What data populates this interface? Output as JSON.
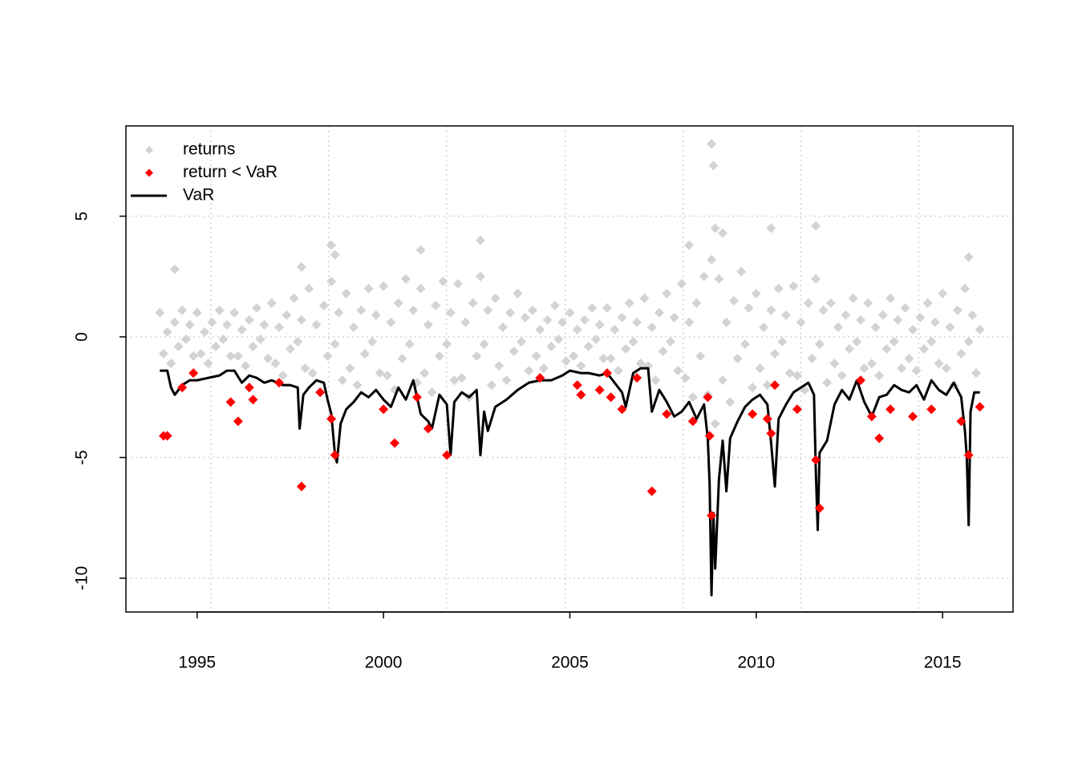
{
  "chart_data": {
    "type": "scatter",
    "xlim": [
      1993.09,
      2016.89
    ],
    "ylim": [
      -11.4,
      8.74
    ],
    "xticks": [
      1995,
      2000,
      2005,
      2010,
      2015
    ],
    "yticks": [
      -10,
      -5,
      0,
      5
    ],
    "xgrid": [
      1995.37,
      1998.53,
      2001.69,
      2004.88,
      2008.04,
      2011.2,
      2014.36
    ],
    "grid": true,
    "legend": "topleft",
    "series": [
      {
        "name": "returns",
        "color": "#d3d3d3",
        "marker": "diamond",
        "x": [
          1994.0,
          1994.1,
          1994.2,
          1994.3,
          1994.4,
          1994.5,
          1994.6,
          1994.7,
          1994.8,
          1994.9,
          1995.0,
          1995.1,
          1995.2,
          1995.3,
          1995.4,
          1995.5,
          1995.6,
          1995.7,
          1995.8,
          1995.9,
          1996.0,
          1996.1,
          1996.2,
          1996.3,
          1996.4,
          1996.5,
          1996.6,
          1996.7,
          1996.8,
          1996.9,
          1997.0,
          1997.1,
          1997.2,
          1997.3,
          1997.4,
          1997.5,
          1997.6,
          1997.7,
          1997.8,
          1997.9,
          1998.0,
          1998.1,
          1998.2,
          1998.3,
          1998.4,
          1998.5,
          1998.6,
          1998.7,
          1998.8,
          1998.9,
          1999.0,
          1999.1,
          1999.2,
          1999.3,
          1999.4,
          1999.5,
          1999.6,
          1999.7,
          1999.8,
          1999.9,
          2000.0,
          2000.1,
          2000.2,
          2000.3,
          2000.4,
          2000.5,
          2000.6,
          2000.7,
          2000.8,
          2000.9,
          2001.0,
          2001.1,
          2001.2,
          2001.3,
          2001.4,
          2001.5,
          2001.6,
          2001.7,
          2001.8,
          2001.9,
          2002.0,
          2002.1,
          2002.2,
          2002.3,
          2002.4,
          2002.5,
          2002.6,
          2002.7,
          2002.8,
          2002.9,
          2003.0,
          2003.1,
          2003.2,
          2003.3,
          2003.4,
          2003.5,
          2003.6,
          2003.7,
          2003.8,
          2003.9,
          2004.0,
          2004.1,
          2004.2,
          2004.3,
          2004.4,
          2004.5,
          2004.6,
          2004.7,
          2004.8,
          2004.9,
          2005.0,
          2005.1,
          2005.2,
          2005.3,
          2005.4,
          2005.5,
          2005.6,
          2005.7,
          2005.8,
          2005.9,
          2006.0,
          2006.1,
          2006.2,
          2006.3,
          2006.4,
          2006.5,
          2006.6,
          2006.7,
          2006.8,
          2006.9,
          2007.0,
          2007.1,
          2007.2,
          2007.3,
          2007.4,
          2007.5,
          2007.6,
          2007.7,
          2007.8,
          2007.9,
          2008.0,
          2008.1,
          2008.2,
          2008.3,
          2008.4,
          2008.5,
          2008.6,
          2008.7,
          2008.8,
          2008.9,
          2009.0,
          2009.1,
          2009.2,
          2009.3,
          2009.4,
          2009.5,
          2009.6,
          2009.7,
          2009.8,
          2009.9,
          2010.0,
          2010.1,
          2010.2,
          2010.3,
          2010.4,
          2010.5,
          2010.6,
          2010.7,
          2010.8,
          2010.9,
          2011.0,
          2011.1,
          2011.2,
          2011.3,
          2011.4,
          2011.5,
          2011.6,
          2011.7,
          2011.8,
          2011.9,
          2012.0,
          2012.1,
          2012.2,
          2012.3,
          2012.4,
          2012.5,
          2012.6,
          2012.7,
          2012.8,
          2012.9,
          2013.0,
          2013.1,
          2013.2,
          2013.3,
          2013.4,
          2013.5,
          2013.6,
          2013.7,
          2013.8,
          2013.9,
          2014.0,
          2014.1,
          2014.2,
          2014.3,
          2014.4,
          2014.5,
          2014.6,
          2014.7,
          2014.8,
          2014.9,
          2015.0,
          2015.1,
          2015.2,
          2015.3,
          2015.4,
          2015.5,
          2015.6,
          2015.7,
          2015.8,
          2015.9,
          2016.0,
          1994.4,
          1997.8,
          1998.6,
          1998.7,
          2002.6,
          2001.0,
          2008.8,
          2008.85,
          2008.9,
          2009.1,
          2010.4,
          2011.6,
          2015.7,
          2008.2
        ],
        "values": [
          1.0,
          -0.7,
          0.2,
          -1.1,
          0.6,
          -0.4,
          1.1,
          -0.1,
          0.5,
          -0.8,
          1.0,
          -0.7,
          0.2,
          -1.1,
          0.6,
          -0.4,
          1.1,
          -0.1,
          0.5,
          -0.8,
          1.0,
          -0.8,
          0.3,
          -1.2,
          0.7,
          -0.4,
          1.2,
          -0.1,
          0.5,
          -0.9,
          1.4,
          -1.1,
          0.4,
          -1.6,
          0.9,
          -0.5,
          1.6,
          -0.2,
          0.7,
          -1.3,
          2.0,
          -1.5,
          0.5,
          -2.3,
          1.3,
          -0.8,
          2.3,
          -0.3,
          1.0,
          -1.8,
          1.8,
          -1.3,
          0.4,
          -2.0,
          1.1,
          -0.7,
          2.0,
          -0.2,
          0.9,
          -1.5,
          2.1,
          -1.6,
          0.6,
          -2.2,
          1.4,
          -0.9,
          2.4,
          -0.3,
          1.1,
          -1.9,
          2.0,
          -1.5,
          0.5,
          -2.3,
          1.3,
          -0.8,
          2.3,
          -0.3,
          1.0,
          -1.8,
          2.2,
          -1.7,
          0.6,
          -2.5,
          1.4,
          -0.8,
          2.5,
          -0.3,
          1.1,
          -2.0,
          1.6,
          -1.2,
          0.4,
          -1.8,
          1.0,
          -0.6,
          1.8,
          -0.2,
          0.8,
          -1.4,
          1.1,
          -0.8,
          0.3,
          -1.3,
          0.7,
          -0.4,
          1.3,
          -0.1,
          0.6,
          -1.0,
          1.0,
          -0.8,
          0.3,
          -1.2,
          0.7,
          -0.4,
          1.2,
          -0.1,
          0.5,
          -0.9,
          1.2,
          -0.9,
          0.3,
          -1.4,
          0.8,
          -0.5,
          1.4,
          -0.2,
          0.6,
          -1.1,
          1.6,
          -1.2,
          0.4,
          -1.8,
          1.0,
          -0.6,
          1.8,
          -0.2,
          0.8,
          -1.4,
          2.2,
          -1.7,
          0.6,
          -2.5,
          1.4,
          -0.8,
          2.5,
          -2.4,
          3.2,
          -3.6,
          2.4,
          -1.8,
          0.6,
          -2.7,
          1.5,
          -0.9,
          2.7,
          -0.3,
          1.2,
          -2.1,
          1.8,
          -1.3,
          0.4,
          -2.0,
          1.1,
          -0.7,
          2.0,
          -0.2,
          0.9,
          -1.5,
          2.1,
          -1.6,
          0.6,
          -2.2,
          1.4,
          -0.9,
          2.4,
          -0.3,
          1.1,
          -1.9,
          1.4,
          -1.1,
          0.4,
          -1.6,
          0.9,
          -0.5,
          1.6,
          -0.2,
          0.7,
          -1.3,
          1.4,
          -1.1,
          0.4,
          -1.6,
          0.9,
          -0.5,
          1.6,
          -0.2,
          0.7,
          -1.3,
          1.2,
          -0.9,
          0.3,
          -1.4,
          0.8,
          -0.5,
          1.4,
          -0.2,
          0.6,
          -1.1,
          1.8,
          -1.3,
          0.4,
          -2.0,
          1.1,
          -0.7,
          2.0,
          -0.2,
          0.9,
          -1.5,
          0.3,
          2.8,
          2.9,
          3.8,
          3.4,
          4.0,
          3.6,
          8.0,
          7.1,
          4.5,
          4.3,
          4.5,
          4.6,
          3.3,
          3.8
        ]
      },
      {
        "name": "return < VaR",
        "color": "#ff0000",
        "marker": "diamond",
        "x": [
          1994.1,
          1994.2,
          1994.6,
          1994.9,
          1995.9,
          1996.1,
          1996.4,
          1996.5,
          1997.2,
          1997.8,
          1998.3,
          1998.6,
          1998.7,
          2000.0,
          2000.3,
          2000.9,
          2001.2,
          2001.7,
          2004.2,
          2005.2,
          2005.3,
          2005.8,
          2006.0,
          2006.1,
          2006.4,
          2006.8,
          2007.2,
          2007.6,
          2008.3,
          2008.7,
          2008.75,
          2008.8,
          2009.9,
          2010.3,
          2010.4,
          2010.5,
          2011.1,
          2011.6,
          2011.7,
          2012.8,
          2013.1,
          2013.3,
          2013.6,
          2014.2,
          2014.7,
          2015.5,
          2015.7,
          2016.0
        ],
        "values": [
          -4.1,
          -4.1,
          -2.1,
          -1.5,
          -2.7,
          -3.5,
          -2.1,
          -2.6,
          -1.9,
          -6.2,
          -2.3,
          -3.4,
          -4.9,
          -3.0,
          -4.4,
          -2.5,
          -3.8,
          -4.9,
          -1.7,
          -2.0,
          -2.4,
          -2.2,
          -1.5,
          -2.5,
          -3.0,
          -1.7,
          -6.4,
          -3.2,
          -3.5,
          -2.5,
          -4.1,
          -7.4,
          -3.2,
          -3.4,
          -4.0,
          -2.0,
          -3.0,
          -5.1,
          -7.1,
          -1.8,
          -3.3,
          -4.2,
          -3.0,
          -3.3,
          -3.0,
          -3.5,
          -4.9,
          -2.9
        ]
      },
      {
        "name": "VaR",
        "color": "#000000",
        "marker": "line",
        "x": [
          1994.0,
          1994.2,
          1994.3,
          1994.4,
          1994.6,
          1994.8,
          1995.0,
          1995.3,
          1995.6,
          1995.8,
          1996.0,
          1996.2,
          1996.4,
          1996.6,
          1996.8,
          1997.0,
          1997.3,
          1997.5,
          1997.7,
          1997.75,
          1997.85,
          1998.0,
          1998.2,
          1998.4,
          1998.5,
          1998.6,
          1998.7,
          1998.75,
          1998.85,
          1999.0,
          1999.2,
          1999.4,
          1999.6,
          1999.8,
          2000.0,
          2000.2,
          2000.4,
          2000.6,
          2000.8,
          2001.0,
          2001.2,
          2001.3,
          2001.5,
          2001.7,
          2001.8,
          2001.9,
          2002.1,
          2002.3,
          2002.5,
          2002.6,
          2002.7,
          2002.8,
          2003.0,
          2003.3,
          2003.6,
          2003.9,
          2004.2,
          2004.5,
          2004.8,
          2005.0,
          2005.3,
          2005.5,
          2005.8,
          2006.0,
          2006.2,
          2006.4,
          2006.5,
          2006.7,
          2006.9,
          2007.1,
          2007.2,
          2007.4,
          2007.6,
          2007.8,
          2008.0,
          2008.2,
          2008.4,
          2008.6,
          2008.7,
          2008.75,
          2008.8,
          2008.85,
          2008.9,
          2009.0,
          2009.1,
          2009.2,
          2009.3,
          2009.5,
          2009.7,
          2009.9,
          2010.1,
          2010.3,
          2010.4,
          2010.5,
          2010.6,
          2010.8,
          2011.0,
          2011.2,
          2011.4,
          2011.55,
          2011.6,
          2011.65,
          2011.7,
          2011.9,
          2012.1,
          2012.3,
          2012.5,
          2012.7,
          2012.9,
          2013.1,
          2013.3,
          2013.5,
          2013.7,
          2013.9,
          2014.1,
          2014.3,
          2014.5,
          2014.7,
          2014.9,
          2015.1,
          2015.3,
          2015.5,
          2015.6,
          2015.65,
          2015.7,
          2015.75,
          2015.85,
          2016.0
        ],
        "values": [
          -1.4,
          -1.4,
          -2.1,
          -2.4,
          -2.0,
          -1.8,
          -1.8,
          -1.7,
          -1.6,
          -1.4,
          -1.4,
          -1.9,
          -1.6,
          -1.7,
          -1.9,
          -1.8,
          -2.0,
          -2.0,
          -2.1,
          -3.8,
          -2.4,
          -2.1,
          -1.8,
          -1.9,
          -2.6,
          -3.2,
          -4.9,
          -5.2,
          -3.6,
          -3.0,
          -2.7,
          -2.3,
          -2.5,
          -2.2,
          -2.6,
          -2.9,
          -2.1,
          -2.6,
          -1.8,
          -3.2,
          -3.5,
          -3.8,
          -2.4,
          -2.8,
          -4.9,
          -2.7,
          -2.3,
          -2.5,
          -2.2,
          -4.9,
          -3.1,
          -3.9,
          -2.9,
          -2.6,
          -2.2,
          -1.9,
          -1.8,
          -1.8,
          -1.6,
          -1.4,
          -1.5,
          -1.5,
          -1.6,
          -1.5,
          -1.9,
          -2.3,
          -2.9,
          -1.5,
          -1.3,
          -1.3,
          -3.1,
          -2.2,
          -2.7,
          -3.3,
          -3.1,
          -2.7,
          -3.4,
          -2.8,
          -4.2,
          -6.1,
          -10.7,
          -7.3,
          -9.6,
          -5.9,
          -4.3,
          -6.4,
          -4.2,
          -3.5,
          -2.9,
          -2.6,
          -2.4,
          -2.8,
          -4.4,
          -6.2,
          -3.4,
          -2.8,
          -2.3,
          -2.1,
          -1.9,
          -2.4,
          -5.6,
          -8.0,
          -4.8,
          -4.3,
          -2.8,
          -2.2,
          -2.6,
          -1.8,
          -2.7,
          -3.3,
          -2.5,
          -2.4,
          -2.0,
          -2.2,
          -2.3,
          -2.0,
          -2.6,
          -1.8,
          -2.2,
          -2.4,
          -1.9,
          -2.5,
          -3.9,
          -5.0,
          -7.8,
          -3.1,
          -2.3,
          -2.3
        ]
      }
    ]
  }
}
